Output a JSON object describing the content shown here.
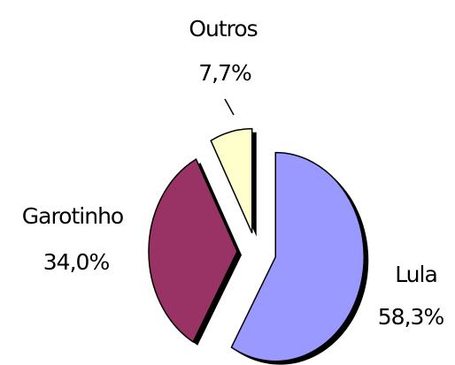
{
  "chart_data": {
    "type": "pie",
    "categories": [
      "Lula",
      "Garotinho",
      "Outros"
    ],
    "values": [
      58.3,
      34.0,
      7.7
    ],
    "value_labels": [
      "58,3%",
      "34,0%",
      "7,7%"
    ],
    "colors": [
      "#9999ff",
      "#993366",
      "#ffffcc"
    ]
  }
}
